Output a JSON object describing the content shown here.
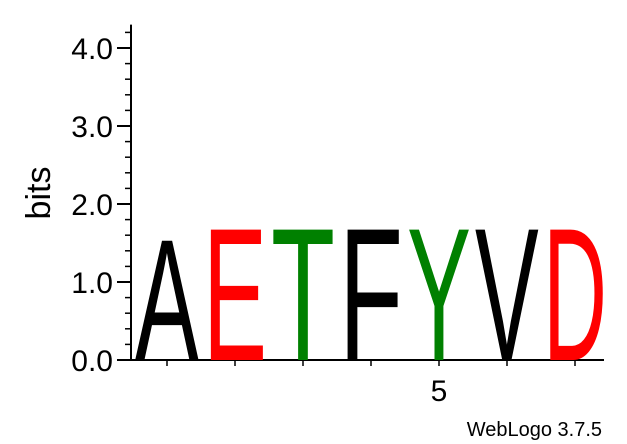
{
  "chart_data": {
    "type": "sequence-logo",
    "ylabel": "bits",
    "ylim": [
      0,
      4.3
    ],
    "y_major_ticks": [
      {
        "value": 0,
        "label": "0.0"
      },
      {
        "value": 1,
        "label": "1.0"
      },
      {
        "value": 2,
        "label": "2.0"
      },
      {
        "value": 3,
        "label": "3.0"
      },
      {
        "value": 4,
        "label": "4.0"
      }
    ],
    "y_minor_step": 0.2,
    "positions": [
      1,
      2,
      3,
      4,
      5,
      6,
      7
    ],
    "x_tick_labels": [
      {
        "position": 5,
        "label": "5"
      }
    ],
    "stacks": [
      {
        "position": 1,
        "letter": "A",
        "bits": 1.6,
        "color": "#000000"
      },
      {
        "position": 2,
        "letter": "E",
        "bits": 1.75,
        "color": "#ff0000"
      },
      {
        "position": 3,
        "letter": "T",
        "bits": 1.75,
        "color": "#008000"
      },
      {
        "position": 4,
        "letter": "F",
        "bits": 1.75,
        "color": "#000000"
      },
      {
        "position": 5,
        "letter": "Y",
        "bits": 1.75,
        "color": "#008000"
      },
      {
        "position": 6,
        "letter": "V",
        "bits": 1.75,
        "color": "#000000"
      },
      {
        "position": 7,
        "letter": "D",
        "bits": 1.75,
        "color": "#ff0000"
      }
    ]
  },
  "footer": {
    "credit": "WebLogo 3.7.5"
  }
}
